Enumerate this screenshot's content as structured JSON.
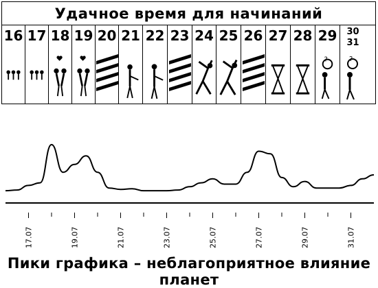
{
  "header": {
    "title": "Удачное время для начинаний"
  },
  "days": [
    {
      "label": "16",
      "art": "figures-row"
    },
    {
      "label": "17",
      "art": "figures-row"
    },
    {
      "label": "18",
      "art": "couple-heart"
    },
    {
      "label": "19",
      "art": "couple-heart"
    },
    {
      "label": "20",
      "art": "stripes"
    },
    {
      "label": "21",
      "art": "handshake"
    },
    {
      "label": "22",
      "art": "handshake"
    },
    {
      "label": "23",
      "art": "stripes"
    },
    {
      "label": "24",
      "art": "stretching-figure"
    },
    {
      "label": "25",
      "art": "stretching-figure"
    },
    {
      "label": "26",
      "art": "stripes"
    },
    {
      "label": "27",
      "art": "hourglass-figures"
    },
    {
      "label": "28",
      "art": "hourglass-figures"
    },
    {
      "label": "29",
      "art": "thinking-figure"
    },
    {
      "label": "30\n31",
      "art": "thinking-figure"
    }
  ],
  "chart_data": {
    "type": "line",
    "title": "",
    "xlabel": "",
    "ylabel": "",
    "ylim": [
      0,
      100
    ],
    "x": [
      "16.07",
      "16.5",
      "17.07",
      "17.5",
      "18.07",
      "18.5",
      "19.07",
      "19.5",
      "20.07",
      "20.5",
      "21.07",
      "21.5",
      "22.07",
      "22.5",
      "23.07",
      "23.5",
      "24.07",
      "24.5",
      "25.07",
      "25.5",
      "26.07",
      "26.5",
      "27.07",
      "27.5",
      "28.07",
      "28.5",
      "29.07",
      "29.5",
      "30.07",
      "30.5",
      "31.07",
      "31.5",
      "31.9"
    ],
    "tick_labels": [
      "17.07",
      "19.07",
      "21.07",
      "23.07",
      "25.07",
      "27.07",
      "29.07",
      "31.07"
    ],
    "series": [
      {
        "values": [
          2,
          3,
          10,
          14,
          72,
          30,
          42,
          55,
          30,
          6,
          4,
          5,
          2,
          2,
          2,
          3,
          8,
          14,
          20,
          12,
          12,
          30,
          62,
          58,
          22,
          8,
          16,
          6,
          6,
          6,
          10,
          20,
          26
        ]
      }
    ],
    "grid": false,
    "legend": "none"
  },
  "footer": {
    "caption": "Пики графика – неблагоприятное влияние планет"
  }
}
